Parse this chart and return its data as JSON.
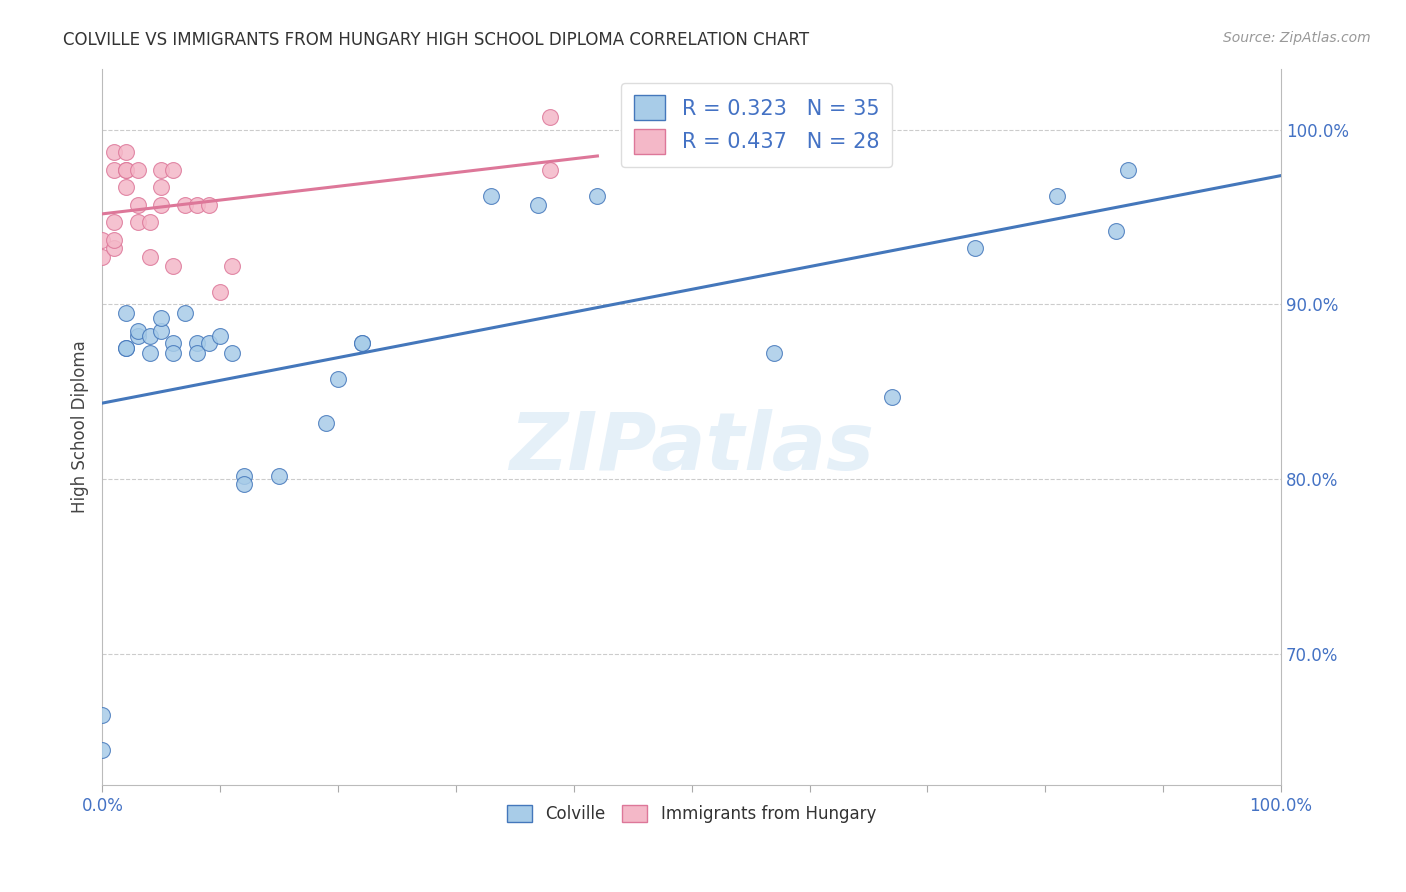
{
  "title": "COLVILLE VS IMMIGRANTS FROM HUNGARY HIGH SCHOOL DIPLOMA CORRELATION CHART",
  "source": "Source: ZipAtlas.com",
  "ylabel": "High School Diploma",
  "xlabel": "",
  "watermark": "ZIPatlas",
  "legend_label1": "Colville",
  "legend_label2": "Immigrants from Hungary",
  "r1": 0.323,
  "n1": 35,
  "r2": 0.437,
  "n2": 28,
  "xlim": [
    0.0,
    1.0
  ],
  "ylim": [
    0.625,
    1.035
  ],
  "color_blue": "#a8cce8",
  "color_pink": "#f4b8c8",
  "line_blue": "#4477bb",
  "line_pink": "#dd7799",
  "title_color": "#333333",
  "axis_color": "#4472c4",
  "grid_color": "#cccccc",
  "colville_x": [
    0.0,
    0.0,
    0.02,
    0.02,
    0.02,
    0.03,
    0.03,
    0.04,
    0.04,
    0.05,
    0.05,
    0.06,
    0.06,
    0.07,
    0.08,
    0.08,
    0.09,
    0.1,
    0.11,
    0.12,
    0.12,
    0.15,
    0.19,
    0.2,
    0.22,
    0.22,
    0.33,
    0.37,
    0.42,
    0.57,
    0.67,
    0.74,
    0.81,
    0.86,
    0.87
  ],
  "colville_y": [
    0.645,
    0.665,
    0.875,
    0.875,
    0.895,
    0.882,
    0.885,
    0.882,
    0.872,
    0.885,
    0.892,
    0.878,
    0.872,
    0.895,
    0.878,
    0.872,
    0.878,
    0.882,
    0.872,
    0.802,
    0.797,
    0.802,
    0.832,
    0.857,
    0.878,
    0.878,
    0.962,
    0.957,
    0.962,
    0.872,
    0.847,
    0.932,
    0.962,
    0.942,
    0.977
  ],
  "hungary_x": [
    0.0,
    0.0,
    0.01,
    0.01,
    0.01,
    0.01,
    0.01,
    0.02,
    0.02,
    0.02,
    0.02,
    0.03,
    0.03,
    0.03,
    0.04,
    0.04,
    0.05,
    0.05,
    0.05,
    0.06,
    0.06,
    0.07,
    0.08,
    0.09,
    0.1,
    0.11,
    0.38,
    0.38
  ],
  "hungary_y": [
    0.927,
    0.937,
    0.932,
    0.937,
    0.947,
    0.977,
    0.987,
    0.967,
    0.977,
    0.977,
    0.987,
    0.947,
    0.957,
    0.977,
    0.927,
    0.947,
    0.957,
    0.967,
    0.977,
    0.922,
    0.977,
    0.957,
    0.957,
    0.957,
    0.907,
    0.922,
    1.007,
    0.977
  ]
}
